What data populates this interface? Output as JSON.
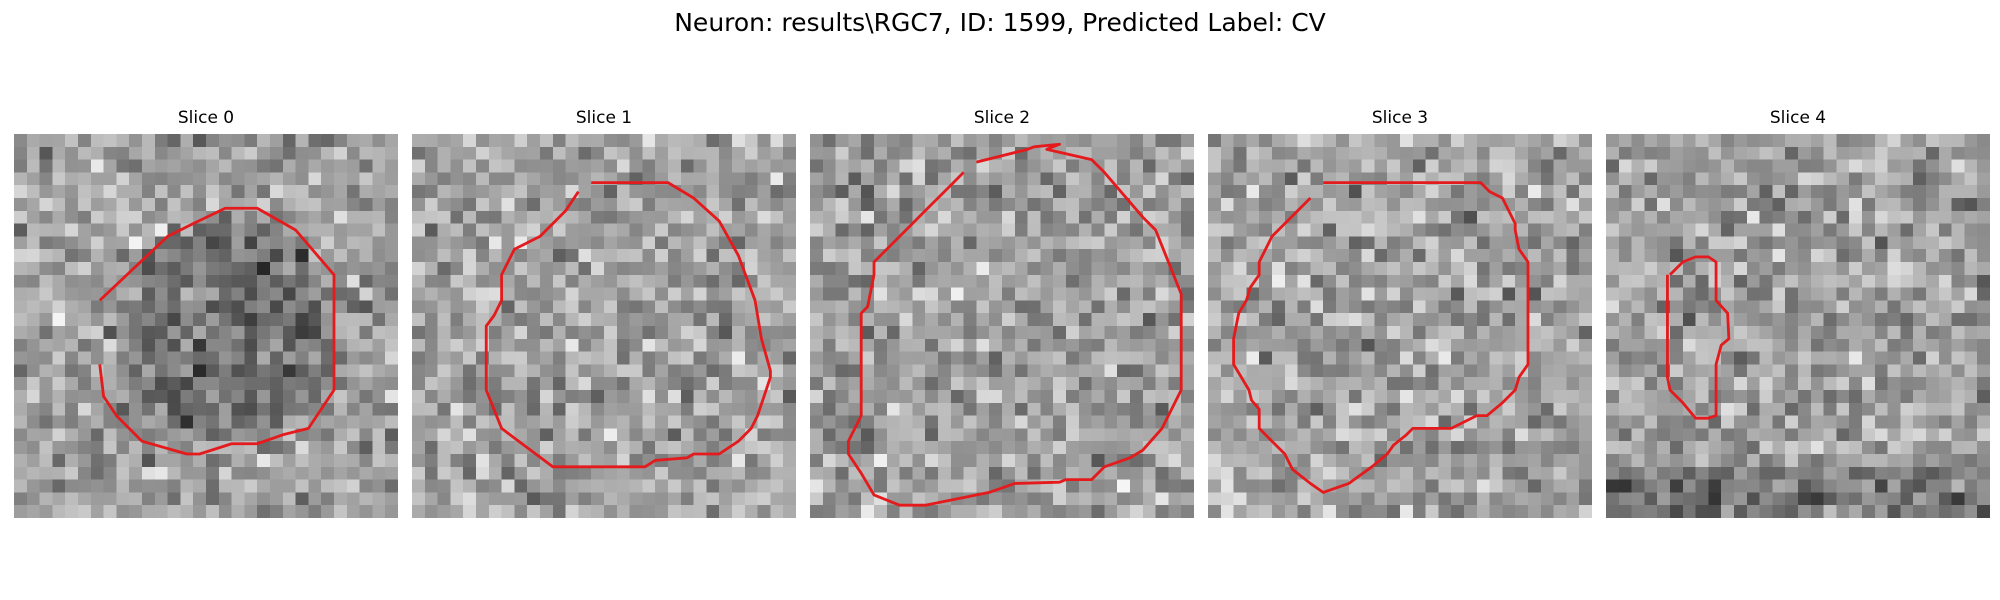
{
  "figure": {
    "title": "Neuron: results\\RGC7, ID: 1599, Predicted Label: CV",
    "contour_color": "#e41a1c"
  },
  "slices": [
    {
      "title": "Slice 0"
    },
    {
      "title": "Slice 1"
    },
    {
      "title": "Slice 2"
    },
    {
      "title": "Slice 3"
    },
    {
      "title": "Slice 4"
    }
  ]
}
